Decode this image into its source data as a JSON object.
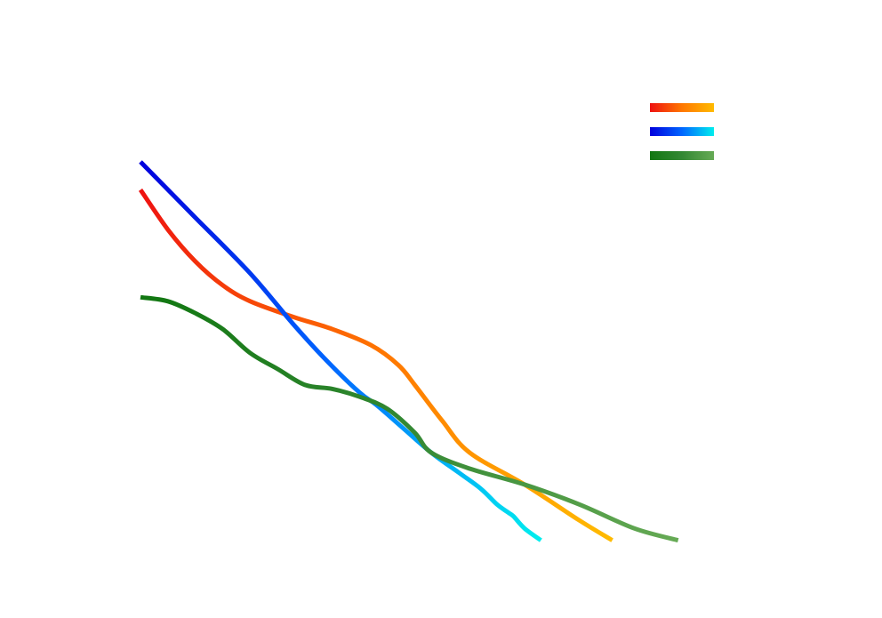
{
  "chart_data": {
    "type": "line",
    "title": "",
    "xlabel": "",
    "ylabel": "",
    "xlim": [
      0,
      1
    ],
    "ylim": [
      0,
      1
    ],
    "grid": false,
    "axes_visible": false,
    "legend": {
      "position": "top-right",
      "show_labels": false
    },
    "series": [
      {
        "gradient": [
          "#ee1111",
          "#ff7700",
          "#ffbb00"
        ],
        "x": [
          0.0,
          0.05,
          0.1,
          0.15,
          0.2,
          0.28,
          0.35,
          0.42,
          0.47,
          0.5,
          0.55,
          0.6,
          0.7,
          0.8,
          0.86
        ],
        "y": [
          0.93,
          0.83,
          0.75,
          0.69,
          0.65,
          0.61,
          0.58,
          0.54,
          0.49,
          0.44,
          0.35,
          0.27,
          0.19,
          0.1,
          0.05
        ]
      },
      {
        "gradient": [
          "#0000dd",
          "#0066ff",
          "#00eeee"
        ],
        "x": [
          0.0,
          0.1,
          0.2,
          0.28,
          0.34,
          0.4,
          0.43,
          0.48,
          0.53,
          0.58,
          0.62,
          0.65,
          0.67,
          0.68,
          0.7,
          0.73
        ],
        "y": [
          1.0,
          0.86,
          0.72,
          0.59,
          0.5,
          0.42,
          0.39,
          0.33,
          0.27,
          0.22,
          0.18,
          0.14,
          0.12,
          0.11,
          0.08,
          0.05
        ]
      },
      {
        "gradient": [
          "#117711",
          "#338833",
          "#66aa55"
        ],
        "x": [
          0.0,
          0.05,
          0.1,
          0.15,
          0.2,
          0.25,
          0.3,
          0.35,
          0.4,
          0.45,
          0.5,
          0.53,
          0.6,
          0.7,
          0.8,
          0.9,
          0.98
        ],
        "y": [
          0.66,
          0.65,
          0.62,
          0.58,
          0.52,
          0.48,
          0.44,
          0.43,
          0.41,
          0.38,
          0.32,
          0.27,
          0.23,
          0.19,
          0.14,
          0.08,
          0.05
        ]
      }
    ]
  }
}
